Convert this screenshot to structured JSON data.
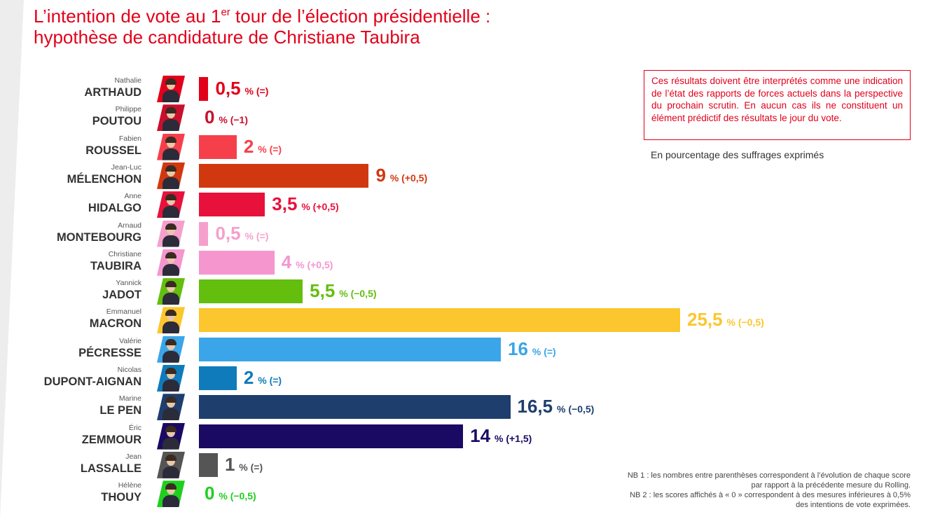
{
  "title": {
    "line1_pre": "L’intention de vote au 1",
    "line1_sup": "er",
    "line1_post": " tour de l’élection présidentielle :",
    "line2": "hypothèse de candidature de Christiane Taubira"
  },
  "disclaimer": "Ces résultats doivent être interprétés comme une indication de l’état des rapports de forces actuels dans la perspective du prochain scrutin. En aucun cas ils ne constituent un élément prédictif des résultats le jour du vote.",
  "unit_note": "En pourcentage des suffrages exprimés",
  "notes": {
    "nb1": "NB 1 : les nombres entre parenthèses correspondent à l’évolution de chaque score par rapport à la précédente mesure du Rolling.",
    "nb2": "NB 2 : les scores affichés à « 0 » correspondent à des mesures inférieures à 0,5% des intentions de vote exprimées."
  },
  "chart_data": {
    "type": "bar",
    "orientation": "horizontal",
    "unit_label": "%",
    "xlim": [
      0,
      25.5
    ],
    "grid": false,
    "categories": [
      {
        "first": "Nathalie",
        "last": "ARTHAUD",
        "value": 0.5,
        "value_label": "0,5",
        "change": "(=)",
        "color": "#e2001a"
      },
      {
        "first": "Philippe",
        "last": "POUTOU",
        "value": 0,
        "value_label": "0",
        "change": "(−1)",
        "color": "#c8102e"
      },
      {
        "first": "Fabien",
        "last": "ROUSSEL",
        "value": 2,
        "value_label": "2",
        "change": "(=)",
        "color": "#f5404b"
      },
      {
        "first": "Jean-Luc",
        "last": "MÉLENCHON",
        "value": 9,
        "value_label": "9",
        "change": "(+0,5)",
        "color": "#d2380f"
      },
      {
        "first": "Anne",
        "last": "HIDALGO",
        "value": 3.5,
        "value_label": "3,5",
        "change": "(+0,5)",
        "color": "#e8113c"
      },
      {
        "first": "Arnaud",
        "last": "MONTEBOURG",
        "value": 0.5,
        "value_label": "0,5",
        "change": "(=)",
        "color": "#f5a0cc"
      },
      {
        "first": "Christiane",
        "last": "TAUBIRA",
        "value": 4,
        "value_label": "4",
        "change": "(+0,5)",
        "color": "#f596cf"
      },
      {
        "first": "Yannick",
        "last": "JADOT",
        "value": 5.5,
        "value_label": "5,5",
        "change": "(−0,5)",
        "color": "#63be0e"
      },
      {
        "first": "Emmanuel",
        "last": "MACRON",
        "value": 25.5,
        "value_label": "25,5",
        "change": "(−0,5)",
        "color": "#fbc62e"
      },
      {
        "first": "Valérie",
        "last": "PÉCRESSE",
        "value": 16,
        "value_label": "16",
        "change": "(=)",
        "color": "#3aa5e8"
      },
      {
        "first": "Nicolas",
        "last": "DUPONT-AIGNAN",
        "value": 2,
        "value_label": "2",
        "change": "(=)",
        "color": "#0f7bbb"
      },
      {
        "first": "Marine",
        "last": "LE PEN",
        "value": 16.5,
        "value_label": "16,5",
        "change": "(−0,5)",
        "color": "#1e3e6e"
      },
      {
        "first": "Éric",
        "last": "ZEMMOUR",
        "value": 14,
        "value_label": "14",
        "change": "(+1,5)",
        "color": "#1b0a63"
      },
      {
        "first": "Jean",
        "last": "LASSALLE",
        "value": 1,
        "value_label": "1",
        "change": "(=)",
        "color": "#555555"
      },
      {
        "first": "Hélène",
        "last": "THOUY",
        "value": 0,
        "value_label": "0",
        "change": "(−0,5)",
        "color": "#1fcf1f"
      }
    ]
  }
}
